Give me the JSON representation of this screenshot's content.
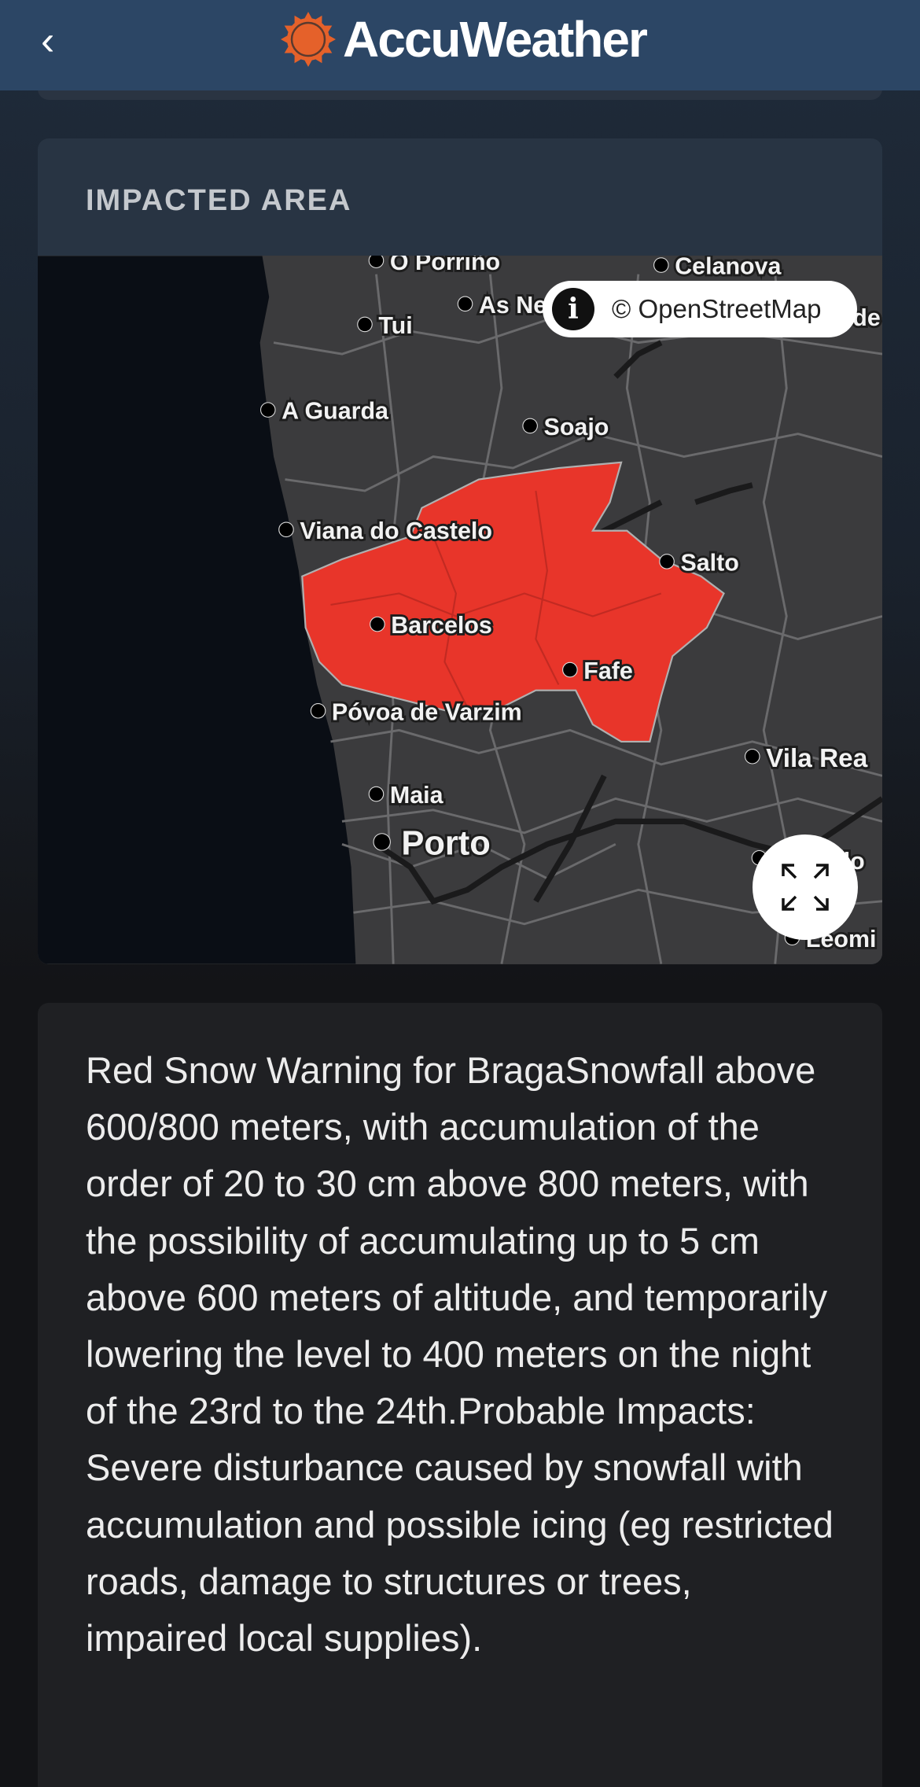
{
  "header": {
    "back_label": "‹",
    "brand": "AccuWeather",
    "brand_color": "#e5612a",
    "background": "#2c4665"
  },
  "impacted_area": {
    "title": "IMPACTED AREA",
    "attribution": "© OpenStreetMap",
    "info_icon": "info-icon",
    "expand_icon": "expand-icon",
    "warning_color": "#e8352a",
    "cities": {
      "porrino": "O Porriño",
      "celanova": "Celanova",
      "tui": "Tui",
      "as_neves": "As Ne",
      "de": "de",
      "a_guarda": "A Guarda",
      "soajo": "Soajo",
      "viana": "Viana do Castelo",
      "salto": "Salto",
      "barcelos": "Barcelos",
      "fafe": "Fafe",
      "povoa": "Póvoa de Varzim",
      "vila_real": "Vila Rea",
      "maia": "Maia",
      "porto": "Porto",
      "lo": "lo",
      "leomi": "Leomi"
    }
  },
  "description": "Red Snow Warning for BragaSnowfall above 600/800 meters, with accumulation of the order of 20 to 30 cm above 800 meters, with the possibility of accumulating up to 5 cm above 600 meters of altitude, and temporarily lowering the level to 400 meters on the night of the 23rd to the 24th.Probable Impacts: Severe disturbance caused by snowfall with accumulation and possible icing (eg restricted roads, damage to structures or trees, impaired local supplies)."
}
